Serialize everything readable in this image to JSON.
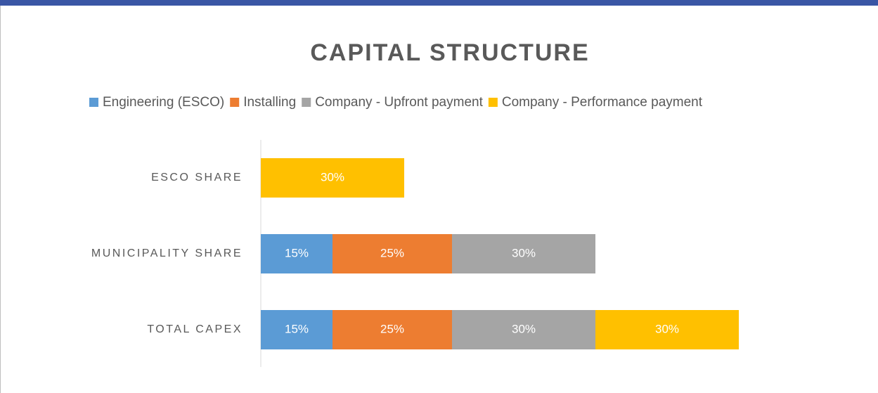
{
  "chart_data": {
    "type": "stacked-bar-horizontal",
    "title": "CAPITAL STRUCTURE",
    "categories": [
      "ESCO SHARE",
      "MUNICIPALITY SHARE",
      "TOTAL CAPEX"
    ],
    "series": [
      {
        "name": "Engineering (ESCO)",
        "color": "#5b9bd5",
        "values": [
          null,
          15,
          15
        ],
        "value_labels": [
          null,
          "15%",
          "15%"
        ]
      },
      {
        "name": "Installing",
        "color": "#ed7d31",
        "values": [
          null,
          25,
          25
        ],
        "value_labels": [
          null,
          "25%",
          "25%"
        ]
      },
      {
        "name": "Company - Upfront payment",
        "color": "#a5a5a5",
        "values": [
          null,
          30,
          30
        ],
        "value_labels": [
          null,
          "30%",
          "30%"
        ]
      },
      {
        "name": "Company - Performance payment",
        "color": "#ffc000",
        "values": [
          30,
          null,
          30
        ],
        "value_labels": [
          "30%",
          null,
          "30%"
        ]
      }
    ],
    "xlim": [
      0,
      120
    ],
    "legend": "top"
  }
}
